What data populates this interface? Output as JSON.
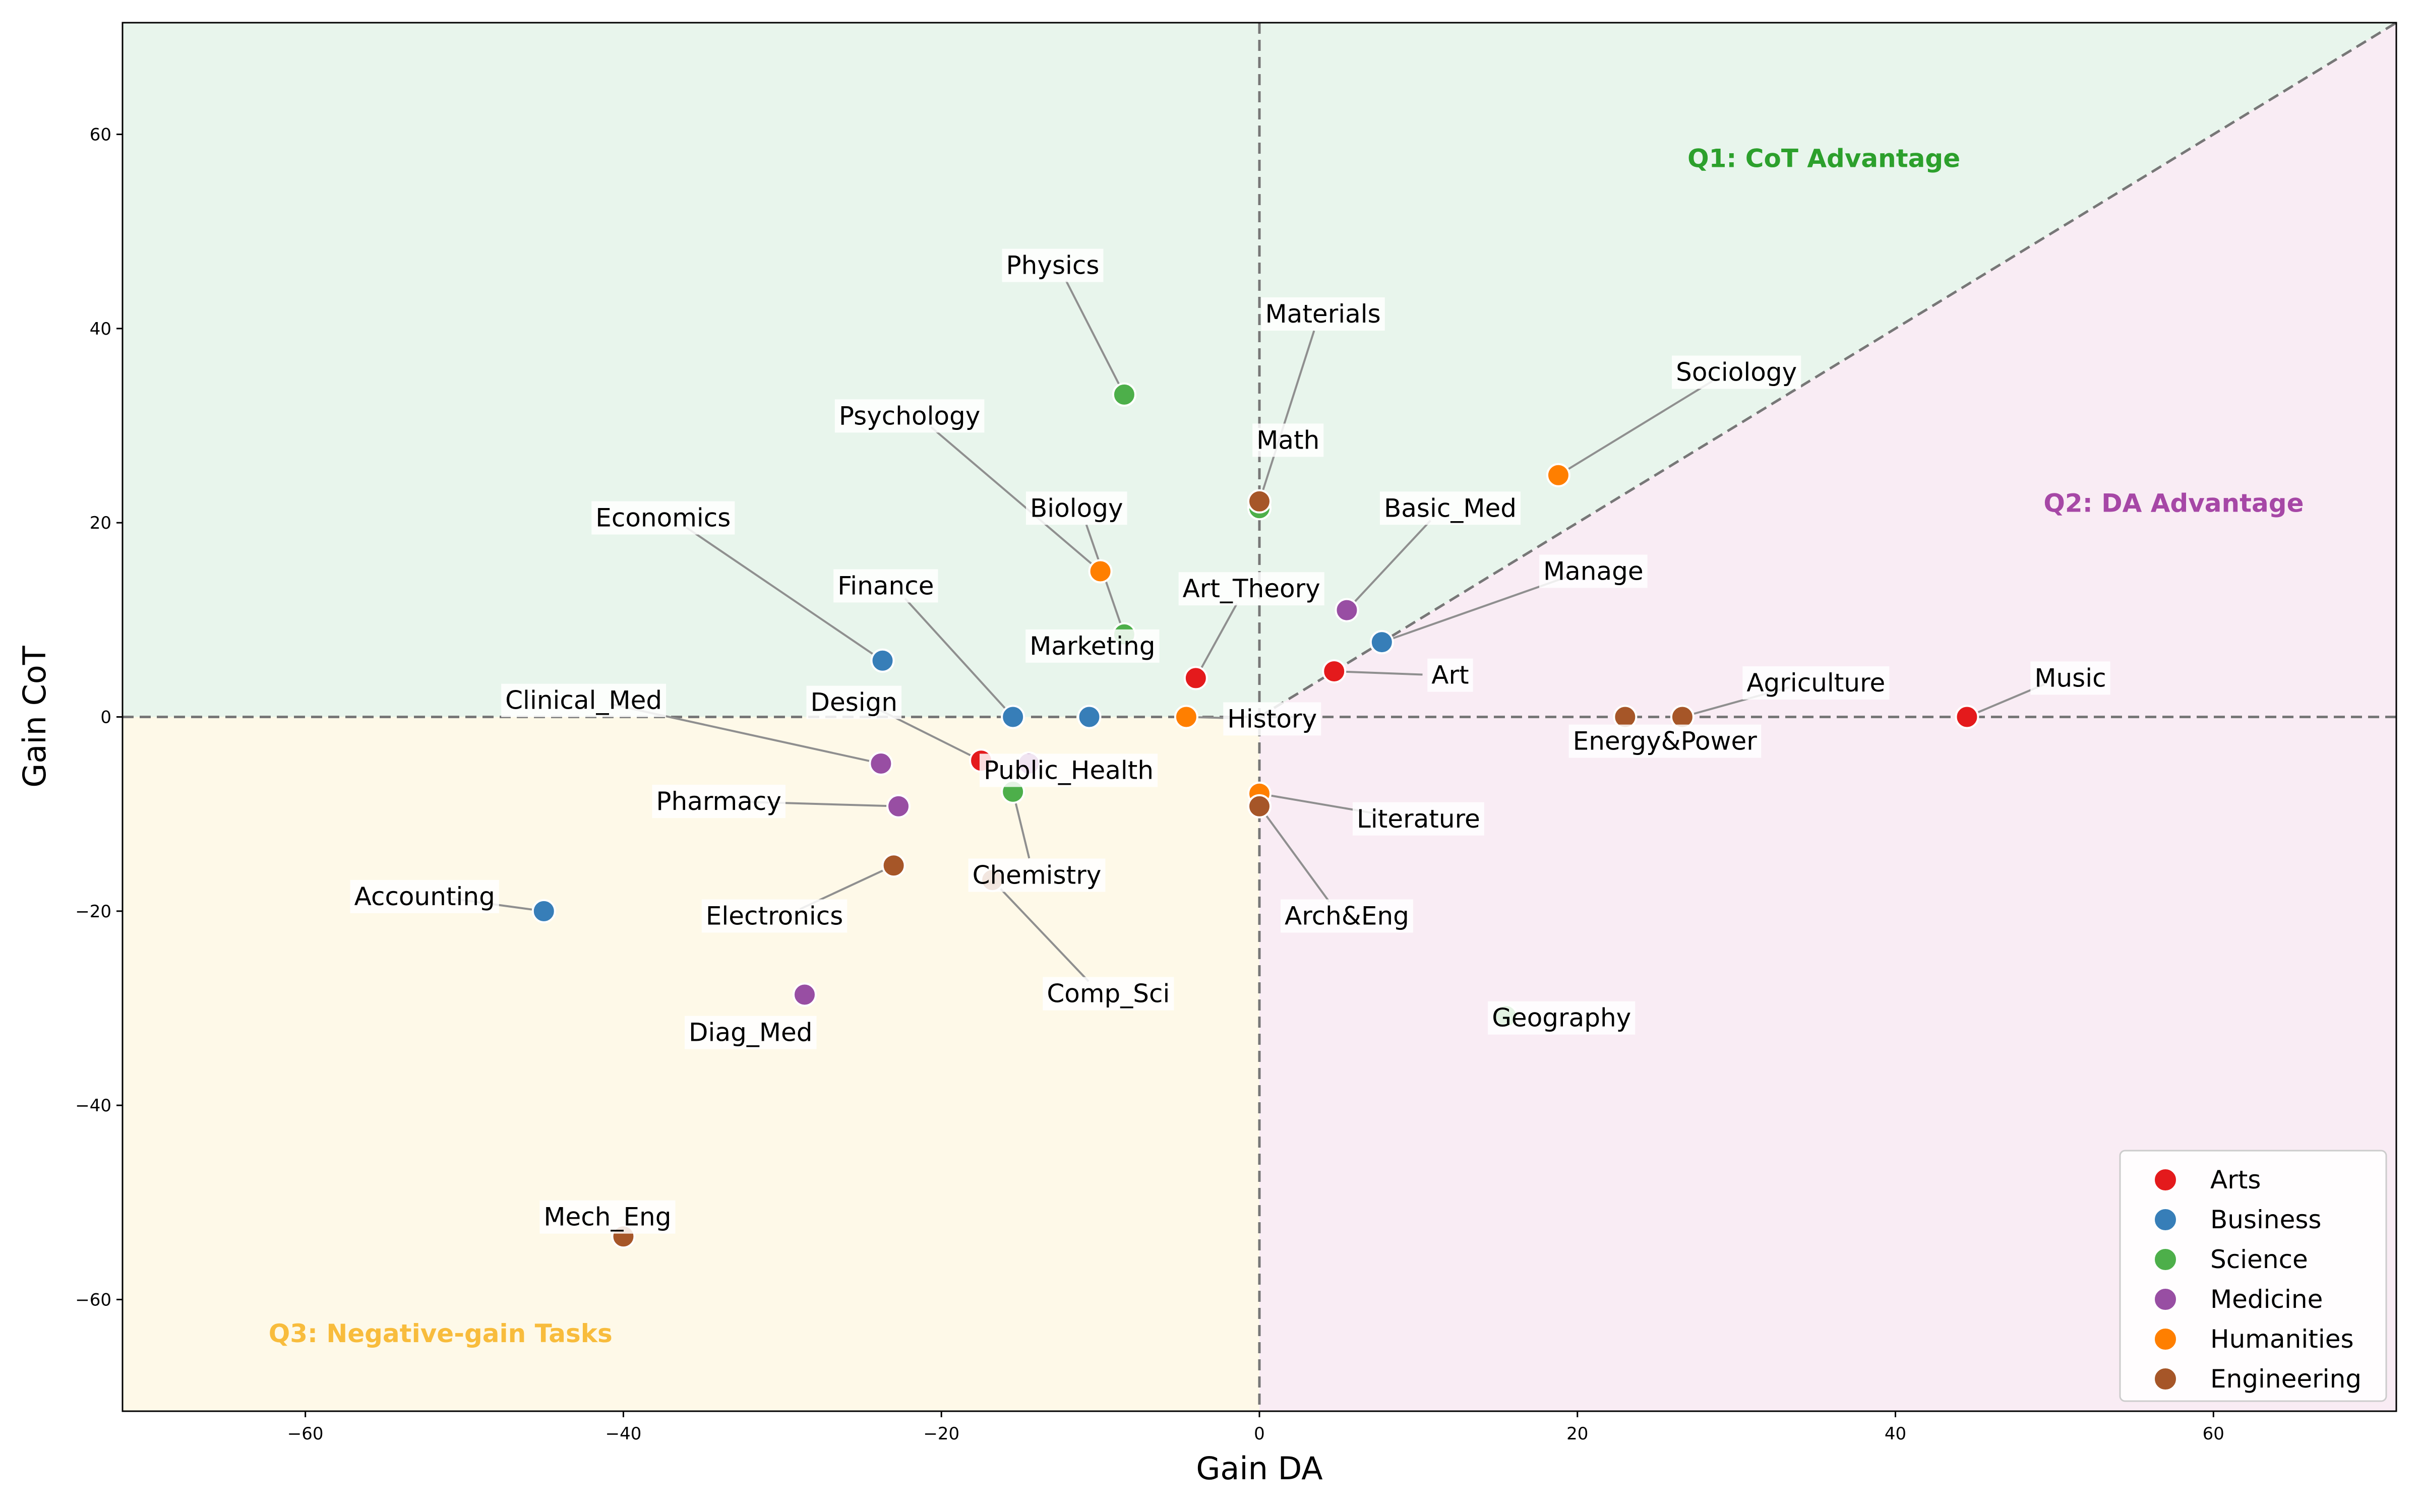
{
  "chart_data": {
    "type": "scatter",
    "xlabel": "Gain DA",
    "ylabel": "Gain CoT",
    "xlim": [
      -71.5,
      71.5
    ],
    "ylim": [
      -71.5,
      71.5
    ],
    "xticks": [
      -60,
      -40,
      -20,
      0,
      20,
      40,
      60
    ],
    "yticks": [
      -60,
      -40,
      -20,
      0,
      20,
      40,
      60
    ],
    "tick_labels": {
      "x": [
        "−60",
        "−40",
        "−20",
        "0",
        "20",
        "40",
        "60"
      ],
      "y": [
        "−60",
        "−40",
        "−20",
        "0",
        "20",
        "40",
        "60"
      ]
    },
    "grid": false,
    "legend_position": "bottom-right",
    "reference_lines": [
      "x = 0",
      "y = 0",
      "y = x"
    ],
    "regions": [
      {
        "name": "Q1:  CoT Advantage",
        "color": "#2ca02c",
        "fill": "#e8f5ec",
        "label_at": [
          35.5,
          57.5
        ]
      },
      {
        "name": "Q2: DA Advantage",
        "color": "#a647a6",
        "fill": "#f9ecf4",
        "label_at": [
          57.5,
          22
        ]
      },
      {
        "name": "Q3: Negative-gain Tasks",
        "color": "#f8bc3c",
        "fill": "#fef9e8",
        "label_at": [
          -51.5,
          -63.5
        ]
      }
    ],
    "categories": [
      {
        "name": "Arts",
        "color": "#e41a1c"
      },
      {
        "name": "Business",
        "color": "#377eb8"
      },
      {
        "name": "Science",
        "color": "#4daf4a"
      },
      {
        "name": "Medicine",
        "color": "#984ea3"
      },
      {
        "name": "Humanities",
        "color": "#ff7f00"
      },
      {
        "name": "Engineering",
        "color": "#a65628"
      }
    ],
    "points": [
      {
        "label": "Music",
        "category": "Arts",
        "x": 44.5,
        "y": 0,
        "label_at": [
          51,
          4
        ]
      },
      {
        "label": "Art",
        "category": "Arts",
        "x": 4.7,
        "y": 4.7,
        "label_at": [
          12,
          4.3
        ]
      },
      {
        "label": "Art_Theory",
        "category": "Arts",
        "x": -4.0,
        "y": 4.0,
        "label_at": [
          -0.5,
          13.2
        ]
      },
      {
        "label": "Design",
        "category": "Arts",
        "x": -17.5,
        "y": -4.5,
        "label_at": [
          -25.5,
          1.5
        ]
      },
      {
        "label": "Accounting",
        "category": "Business",
        "x": -45.0,
        "y": -20.0,
        "label_at": [
          -52.5,
          -18.5
        ]
      },
      {
        "label": "Finance",
        "category": "Business",
        "x": -15.5,
        "y": 0,
        "label_at": [
          -23.5,
          13.5
        ]
      },
      {
        "label": "Marketing",
        "category": "Business",
        "x": -10.7,
        "y": 0,
        "label_at": [
          -10.5,
          7.3
        ]
      },
      {
        "label": "Manage",
        "category": "Business",
        "x": 7.7,
        "y": 7.7,
        "label_at": [
          21,
          15
        ]
      },
      {
        "label": "Economics",
        "category": "Business",
        "x": -23.7,
        "y": 5.8,
        "label_at": [
          -37.5,
          20.5
        ]
      },
      {
        "label": "Physics",
        "category": "Science",
        "x": -8.5,
        "y": 33.2,
        "label_at": [
          -13,
          46.5
        ]
      },
      {
        "label": "Biology",
        "category": "Science",
        "x": -8.5,
        "y": 8.5,
        "label_at": [
          -11.5,
          21.5
        ]
      },
      {
        "label": "Chemistry",
        "category": "Science",
        "x": -15.5,
        "y": -7.7,
        "label_at": [
          -14,
          -16.3
        ]
      },
      {
        "label": "Geography",
        "category": "Science",
        "x": 15.5,
        "y": -30.8,
        "label_at": [
          19,
          -31
        ]
      },
      {
        "label": "Math",
        "category": "Science",
        "x": 0,
        "y": 21.5,
        "label_at": [
          1.8,
          28.5
        ]
      },
      {
        "label": "Clinical_Med",
        "category": "Medicine",
        "x": -23.8,
        "y": -4.8,
        "label_at": [
          -42.5,
          1.7
        ]
      },
      {
        "label": "Public_Health",
        "category": "Medicine",
        "x": -14.5,
        "y": -4.8,
        "label_at": [
          -12,
          -5.5
        ]
      },
      {
        "label": "Pharmacy",
        "category": "Medicine",
        "x": -22.7,
        "y": -9.2,
        "label_at": [
          -34,
          -8.7
        ]
      },
      {
        "label": "Diag_Med",
        "category": "Medicine",
        "x": -28.6,
        "y": -28.6,
        "label_at": [
          -32,
          -32.5
        ]
      },
      {
        "label": "Basic_Med",
        "category": "Medicine",
        "x": 5.5,
        "y": 11.0,
        "label_at": [
          12,
          21.5
        ]
      },
      {
        "label": "Psychology",
        "category": "Humanities",
        "x": -10.0,
        "y": 15.0,
        "label_at": [
          -22,
          31
        ]
      },
      {
        "label": "History",
        "category": "Humanities",
        "x": -4.6,
        "y": 0,
        "label_at": [
          0.8,
          -0.2
        ]
      },
      {
        "label": "Literature",
        "category": "Humanities",
        "x": 0,
        "y": -7.9,
        "label_at": [
          10,
          -10.5
        ]
      },
      {
        "label": "Sociology",
        "category": "Humanities",
        "x": 18.8,
        "y": 24.9,
        "label_at": [
          30,
          35.5
        ]
      },
      {
        "label": "Materials",
        "category": "Engineering",
        "x": 0,
        "y": 22.2,
        "label_at": [
          4,
          41.5
        ]
      },
      {
        "label": "Electronics",
        "category": "Engineering",
        "x": -23.0,
        "y": -15.3,
        "label_at": [
          -30.5,
          -20.5
        ]
      },
      {
        "label": "Mech_Eng",
        "category": "Engineering",
        "x": -40.0,
        "y": -53.5,
        "label_at": [
          -41,
          -51.5
        ]
      },
      {
        "label": "Arch&Eng",
        "category": "Engineering",
        "x": 0,
        "y": -9.2,
        "label_at": [
          5.5,
          -20.5
        ]
      },
      {
        "label": "Energy&Power",
        "category": "Engineering",
        "x": 23.0,
        "y": 0,
        "label_at": [
          25.5,
          -2.5
        ]
      },
      {
        "label": "Agriculture",
        "category": "Engineering",
        "x": 26.6,
        "y": 0,
        "label_at": [
          35,
          3.5
        ]
      },
      {
        "label": "Comp_Sci",
        "category": "Engineering",
        "x": -16.8,
        "y": -16.8,
        "label_at": [
          -9.5,
          -28.5
        ]
      }
    ]
  }
}
